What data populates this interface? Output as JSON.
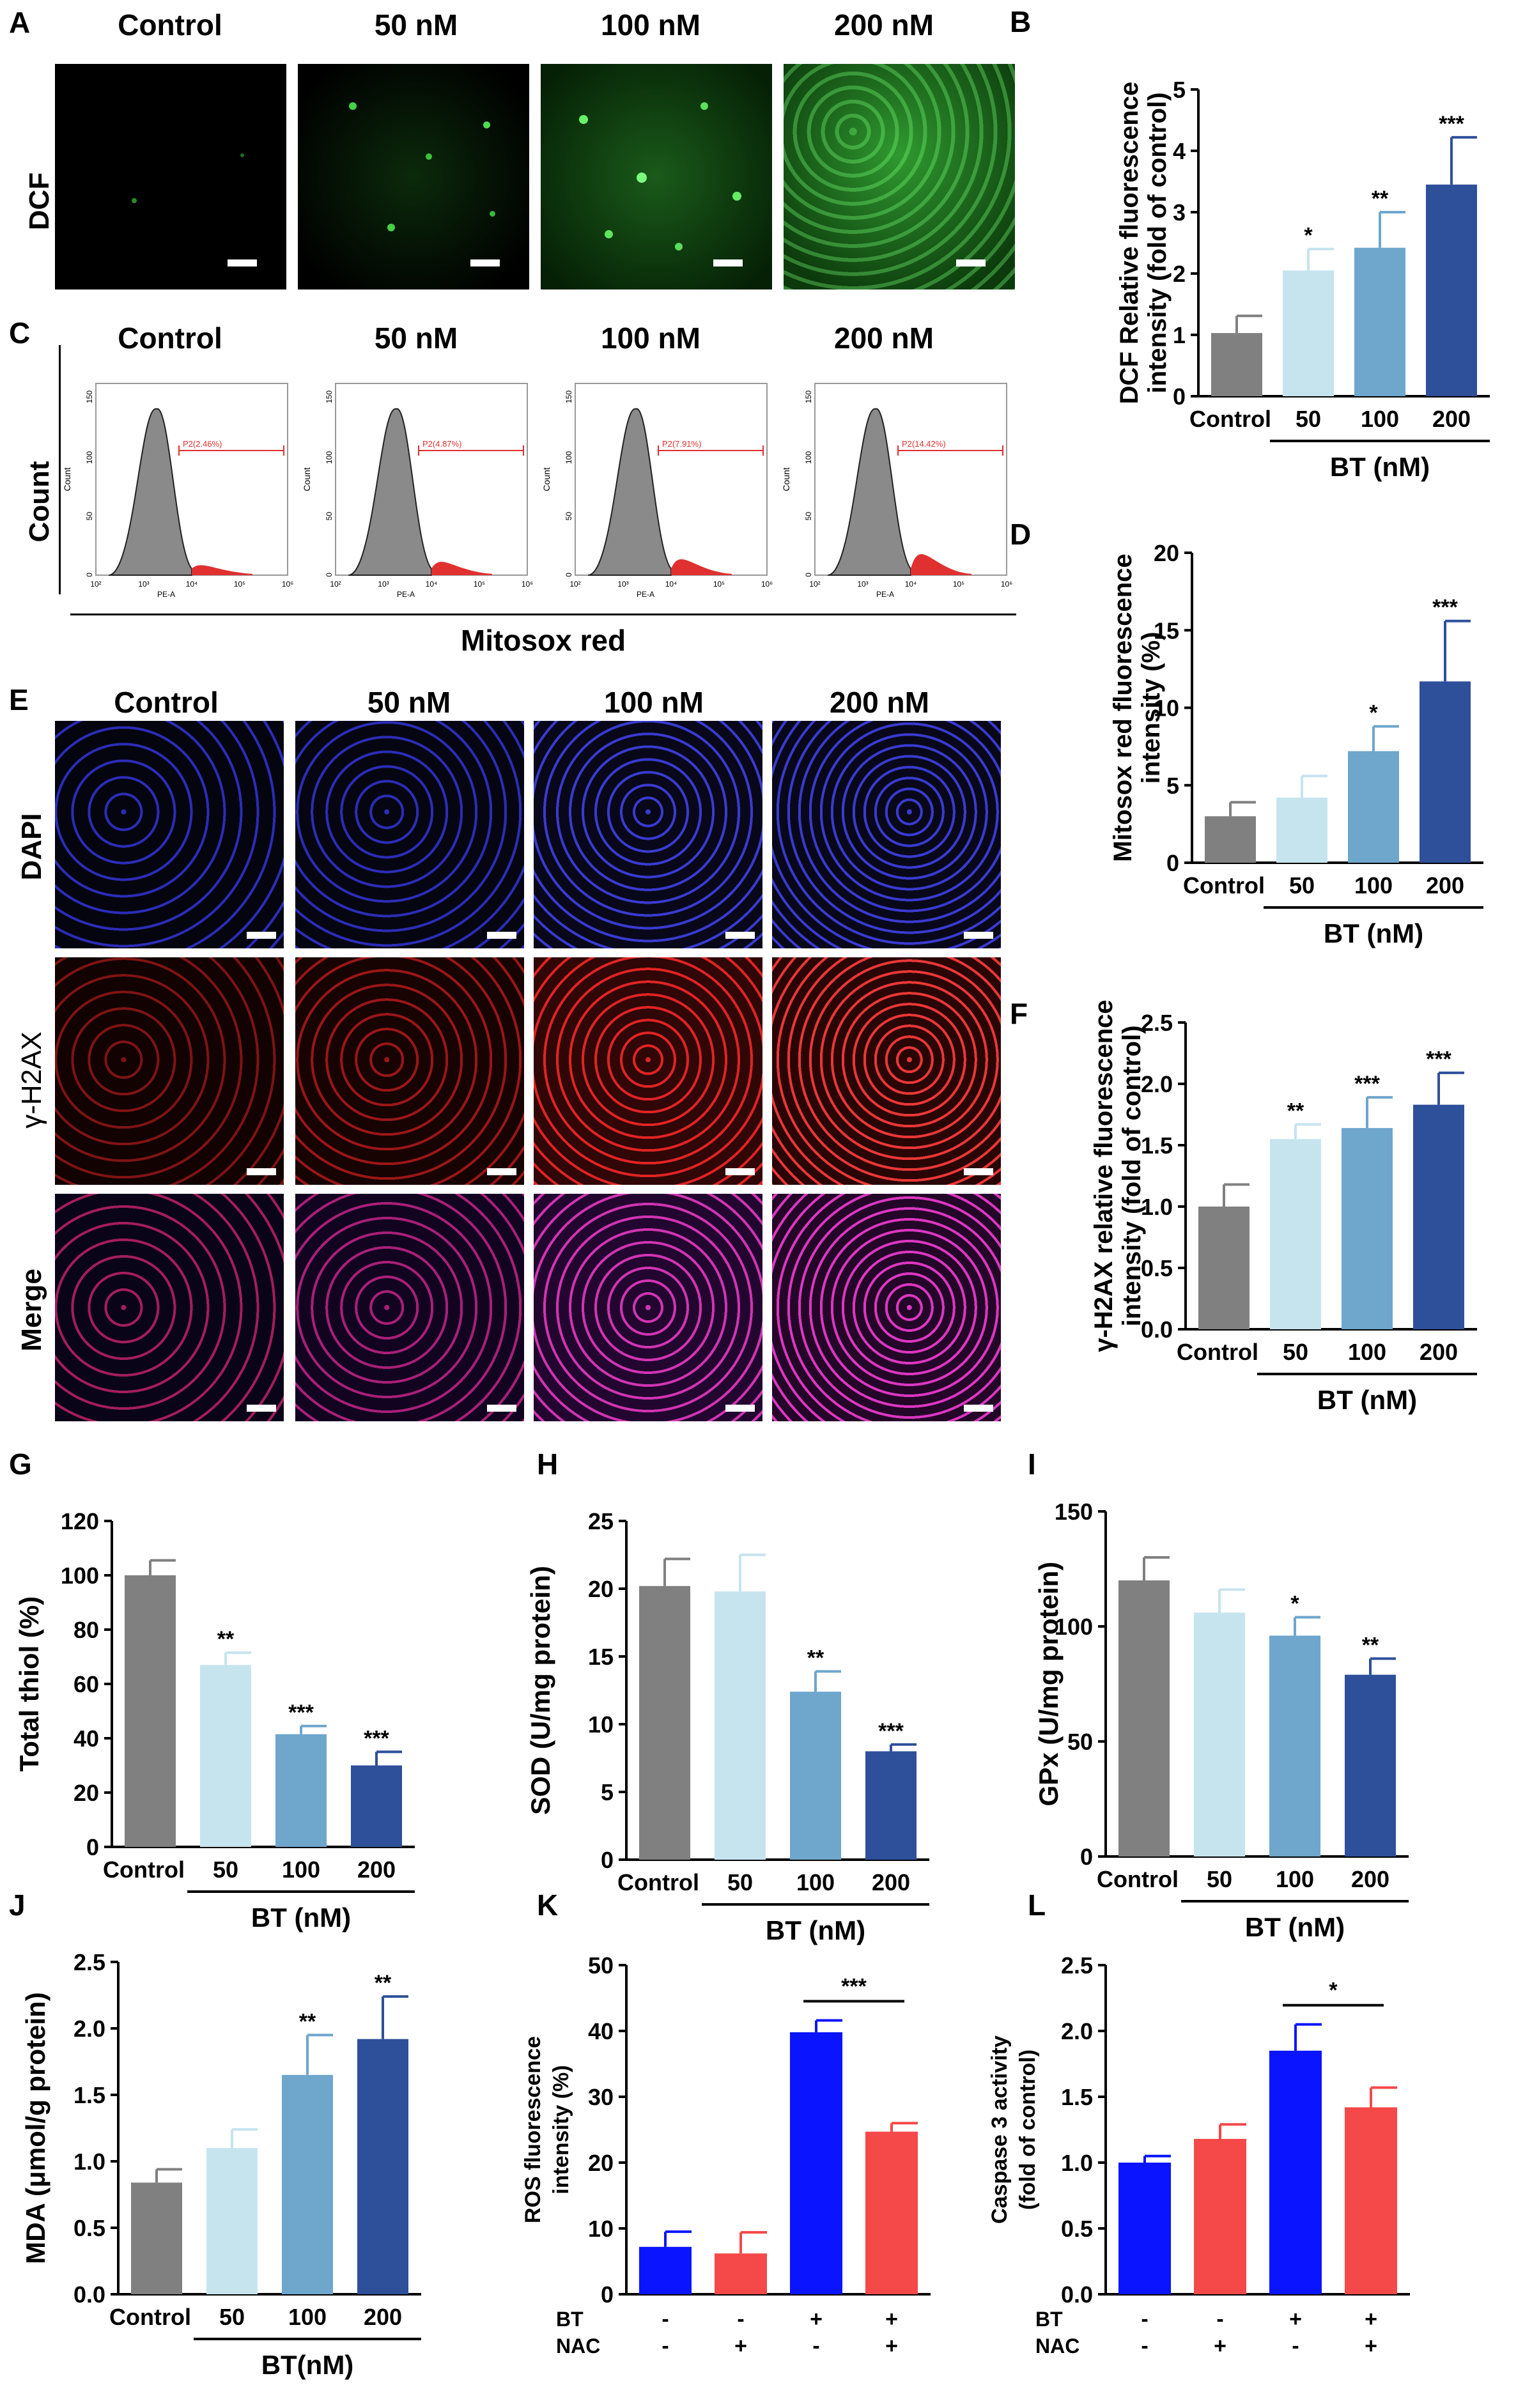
{
  "panels": {
    "A": {
      "label": "A",
      "row_label": "DCF",
      "columns": [
        "Control",
        "50 nM",
        "100 nM",
        "200 nM"
      ]
    },
    "C": {
      "label": "C",
      "row_label": "Count",
      "columns": [
        "Control",
        "50 nM",
        "100 nM",
        "200 nM"
      ],
      "xlabel": "Mitosox red",
      "gates": [
        "P2(2.46%)",
        "P2(4.87%)",
        "P2(7.91%)",
        "P2(14.42%)"
      ],
      "axis_small": "PE-A",
      "count_small": "Count",
      "ticks": [
        "10²",
        "10³",
        "10⁴",
        "10⁵",
        "10⁶"
      ],
      "yticks": [
        "0",
        "50",
        "100",
        "150"
      ]
    },
    "E": {
      "label": "E",
      "rows": [
        "DAPI",
        "γ-H2AX",
        "Merge"
      ],
      "columns": [
        "Control",
        "50 nM",
        "100 nM",
        "200 nM"
      ]
    }
  },
  "colors": {
    "gray": "#808080",
    "light": "#c6e4ee",
    "mid": "#6ea6cc",
    "dark": "#2e4f9a",
    "blue": "#0a14ff",
    "red": "#f54848",
    "gate": "#e03030"
  },
  "chart_data": [
    {
      "id": "B",
      "label": "B",
      "type": "bar",
      "ylabel": "DCF Relative fluorescence intensity (fold of control)",
      "categories": [
        "Control",
        "50",
        "100",
        "200"
      ],
      "xlabel": "BT (nM)",
      "values": [
        1.03,
        2.05,
        2.42,
        3.45
      ],
      "errors": [
        0.28,
        0.35,
        0.58,
        0.77
      ],
      "sig": [
        "",
        "*",
        "**",
        "***"
      ],
      "ylim": [
        0,
        5
      ],
      "yticks": [
        "0",
        "1",
        "2",
        "3",
        "4",
        "5"
      ]
    },
    {
      "id": "D",
      "label": "D",
      "type": "bar",
      "ylabel": "Mitosox red fluorescence intensity (%)",
      "categories": [
        "Control",
        "50",
        "100",
        "200"
      ],
      "xlabel": "BT (nM)",
      "values": [
        3.0,
        4.2,
        7.2,
        11.7
      ],
      "errors": [
        0.9,
        1.4,
        1.6,
        3.9
      ],
      "sig": [
        "",
        "",
        "*",
        "***"
      ],
      "ylim": [
        0,
        20
      ],
      "yticks": [
        "0",
        "5",
        "10",
        "15",
        "20"
      ]
    },
    {
      "id": "F",
      "label": "F",
      "type": "bar",
      "ylabel": "γ-H2AX relative fluorescence intensity (fold of control)",
      "categories": [
        "Control",
        "50",
        "100",
        "200"
      ],
      "xlabel": "BT (nM)",
      "values": [
        1.0,
        1.55,
        1.64,
        1.83
      ],
      "errors": [
        0.18,
        0.12,
        0.25,
        0.26
      ],
      "sig": [
        "",
        "**",
        "***",
        "***"
      ],
      "ylim": [
        0,
        2.5
      ],
      "yticks": [
        "0.0",
        "0.5",
        "1.0",
        "1.5",
        "2.0",
        "2.5"
      ]
    },
    {
      "id": "G",
      "label": "G",
      "type": "bar",
      "ylabel": "Total thiol (%)",
      "categories": [
        "Control",
        "50",
        "100",
        "200"
      ],
      "xlabel": "BT (nM)",
      "values": [
        100,
        67,
        41.5,
        30
      ],
      "errors": [
        5.5,
        4.5,
        3,
        5
      ],
      "sig": [
        "",
        "**",
        "***",
        "***"
      ],
      "ylim": [
        0,
        120
      ],
      "yticks": [
        "0",
        "20",
        "40",
        "60",
        "80",
        "100",
        "120"
      ]
    },
    {
      "id": "H",
      "label": "H",
      "type": "bar",
      "ylabel": "SOD (U/mg protein)",
      "categories": [
        "Control",
        "50",
        "100",
        "200"
      ],
      "xlabel": "BT (nM)",
      "values": [
        20.2,
        19.8,
        12.4,
        8.0
      ],
      "errors": [
        2.0,
        2.7,
        1.5,
        0.5
      ],
      "sig": [
        "",
        "",
        "**",
        "***"
      ],
      "ylim": [
        0,
        25
      ],
      "yticks": [
        "0",
        "5",
        "10",
        "15",
        "20",
        "25"
      ]
    },
    {
      "id": "I",
      "label": "I",
      "type": "bar",
      "ylabel": "GPx (U/mg protein)",
      "categories": [
        "Control",
        "50",
        "100",
        "200"
      ],
      "xlabel": "BT (nM)",
      "values": [
        120,
        106,
        96,
        79
      ],
      "errors": [
        10,
        10,
        8,
        7
      ],
      "sig": [
        "",
        "",
        "*",
        "**"
      ],
      "ylim": [
        0,
        150
      ],
      "yticks": [
        "0",
        "50",
        "100",
        "150"
      ]
    },
    {
      "id": "J",
      "label": "J",
      "type": "bar",
      "ylabel": "MDA (μmol/g protein)",
      "categories": [
        "Control",
        "50",
        "100",
        "200"
      ],
      "xlabel": "BT(nM)",
      "values": [
        0.84,
        1.1,
        1.65,
        1.92
      ],
      "errors": [
        0.1,
        0.14,
        0.3,
        0.32
      ],
      "sig": [
        "",
        "",
        "**",
        "**"
      ],
      "ylim": [
        0,
        2.5
      ],
      "yticks": [
        "0.0",
        "0.5",
        "1.0",
        "1.5",
        "2.0",
        "2.5"
      ]
    },
    {
      "id": "K",
      "label": "K",
      "type": "bar",
      "ylabel": "ROS fluorescence intensity (%)",
      "bt": [
        "-",
        "-",
        "+",
        "+"
      ],
      "nac": [
        "-",
        "+",
        "-",
        "+"
      ],
      "row_labels": [
        "BT",
        "NAC"
      ],
      "values": [
        7.2,
        6.2,
        39.8,
        24.7
      ],
      "errors": [
        2.3,
        3.2,
        1.8,
        1.3
      ],
      "bracket": "***",
      "ylim": [
        0,
        50
      ],
      "yticks": [
        "0",
        "10",
        "20",
        "30",
        "40",
        "50"
      ]
    },
    {
      "id": "L",
      "label": "L",
      "type": "bar",
      "ylabel": "Caspase 3 activity (fold of control)",
      "bt": [
        "-",
        "-",
        "+",
        "+"
      ],
      "nac": [
        "-",
        "+",
        "-",
        "+"
      ],
      "row_labels": [
        "BT",
        "NAC"
      ],
      "values": [
        1.0,
        1.18,
        1.85,
        1.42
      ],
      "errors": [
        0.05,
        0.11,
        0.2,
        0.15
      ],
      "bracket": "*",
      "ylim": [
        0,
        2.5
      ],
      "yticks": [
        "0.0",
        "0.5",
        "1.0",
        "1.5",
        "2.0",
        "2.5"
      ]
    }
  ]
}
